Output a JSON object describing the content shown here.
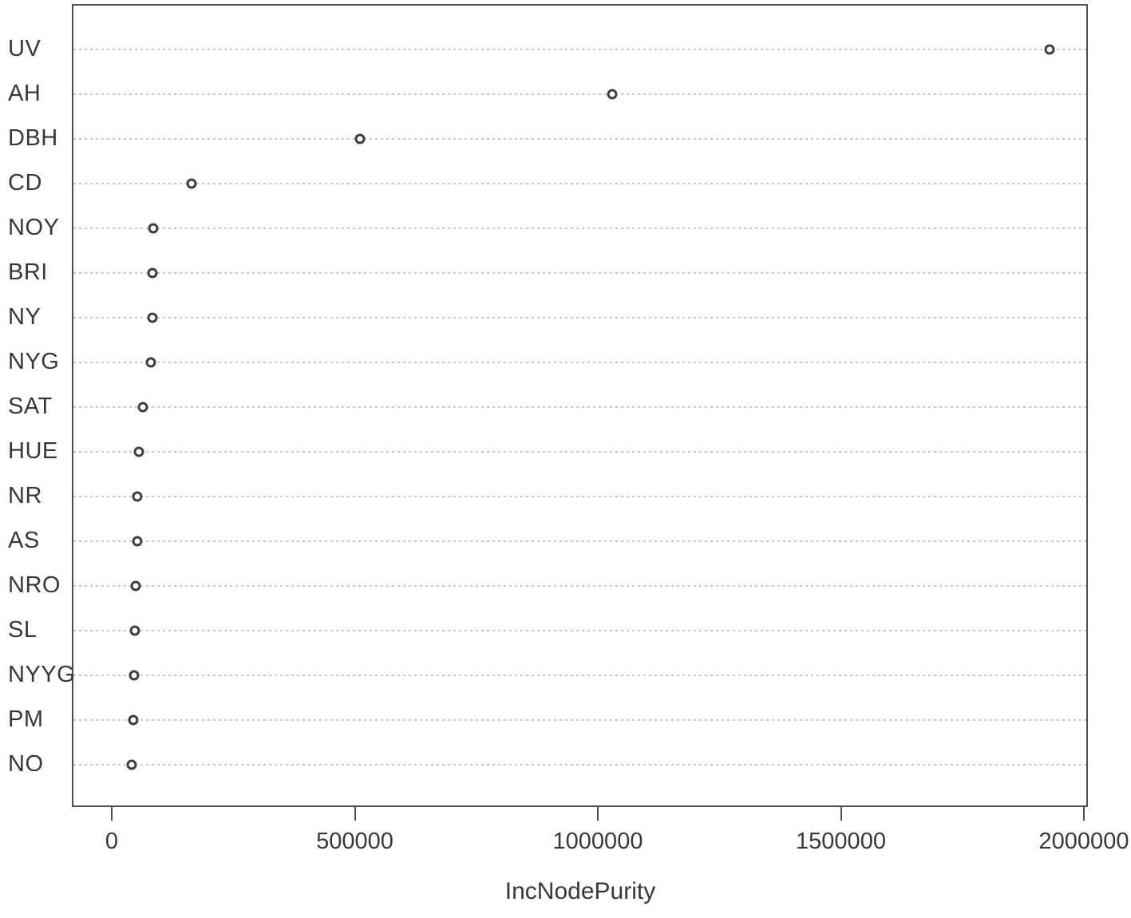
{
  "chart_data": {
    "type": "scatter",
    "chart_kind": "dotchart-variable-importance",
    "title": "",
    "xlabel": "IncNodePurity",
    "ylabel": "",
    "categories": [
      "UV",
      "AH",
      "DBH",
      "CD",
      "NOY",
      "BRI",
      "NY",
      "NYG",
      "SAT",
      "HUE",
      "NR",
      "AS",
      "NRO",
      "SL",
      "NYYG",
      "PM",
      "NO"
    ],
    "values": [
      1930000,
      1030000,
      510000,
      165000,
      85000,
      84000,
      83000,
      81000,
      64000,
      56000,
      53000,
      52000,
      49000,
      47000,
      46000,
      44000,
      41000
    ],
    "xlim": [
      0,
      2000000
    ],
    "x_ticks": [
      0,
      500000,
      1000000,
      1500000,
      2000000
    ],
    "x_tick_labels": [
      "0",
      "500000",
      "1000000",
      "1500000",
      "2000000"
    ],
    "grid": "horizontal dotted line per category, full plot width",
    "legend": "none",
    "marker": "open-circle",
    "colors": {
      "marker_stroke": "#3e3e3e",
      "gridline": "#c7c7c7",
      "axis": "#4e4e4e",
      "text": "#383838",
      "background": "#ffffff"
    }
  }
}
